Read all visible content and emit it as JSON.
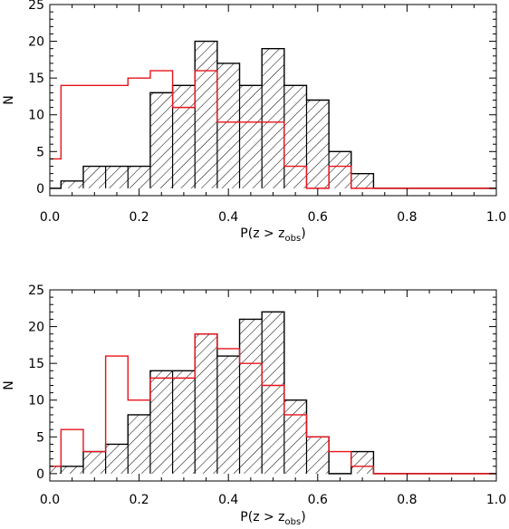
{
  "colors": {
    "black_series": "#000000",
    "red_series": "#e8131b",
    "hatch": "#000000"
  },
  "chart_data": [
    {
      "type": "bar",
      "title": "",
      "xlabel_main": "P(z > z",
      "xlabel_sub": "obs",
      "xlabel_close": ")",
      "ylabel": "N",
      "xlim": [
        0.0,
        1.0
      ],
      "ylim": [
        -1,
        25
      ],
      "xticks": [
        "0.0",
        "0.2",
        "0.4",
        "0.6",
        "0.8",
        "1.0"
      ],
      "yticks": [
        "0",
        "5",
        "10",
        "15",
        "20",
        "25"
      ],
      "bin_edges": [
        0.0,
        0.025,
        0.075,
        0.125,
        0.175,
        0.225,
        0.275,
        0.325,
        0.375,
        0.425,
        0.475,
        0.525,
        0.575,
        0.625,
        0.675,
        0.725,
        0.775,
        0.825,
        0.875,
        0.925,
        0.975,
        1.0
      ],
      "series": [
        {
          "values": [
            0,
            1,
            3,
            3,
            3,
            13,
            14,
            20,
            17,
            14,
            19,
            14,
            12,
            5,
            2,
            0,
            0,
            0,
            0,
            0,
            0
          ],
          "style": "black hatched"
        },
        {
          "values": [
            4,
            14,
            14,
            14,
            15,
            16,
            11,
            16,
            9,
            9,
            9,
            3,
            0,
            3,
            0,
            0,
            0,
            0,
            0,
            0,
            0
          ],
          "style": "red outline"
        }
      ]
    },
    {
      "type": "bar",
      "title": "",
      "xlabel_main": "P(z > z",
      "xlabel_sub": "obs",
      "xlabel_close": ")",
      "ylabel": "N",
      "xlim": [
        0.0,
        1.0
      ],
      "ylim": [
        -1,
        25
      ],
      "xticks": [
        "0.0",
        "0.2",
        "0.4",
        "0.6",
        "0.8",
        "1.0"
      ],
      "yticks": [
        "0",
        "5",
        "10",
        "15",
        "20",
        "25"
      ],
      "bin_edges": [
        0.0,
        0.025,
        0.075,
        0.125,
        0.175,
        0.225,
        0.275,
        0.325,
        0.375,
        0.425,
        0.475,
        0.525,
        0.575,
        0.625,
        0.675,
        0.725,
        0.775,
        0.825,
        0.875,
        0.925,
        0.975,
        1.0
      ],
      "series": [
        {
          "values": [
            1,
            1,
            3,
            4,
            8,
            14,
            14,
            19,
            16,
            21,
            22,
            10,
            5,
            0,
            3,
            0,
            0,
            0,
            0,
            0,
            0
          ],
          "style": "black hatched"
        },
        {
          "values": [
            1,
            6,
            3,
            16,
            10,
            13,
            13,
            19,
            17,
            15,
            12,
            8,
            5,
            3,
            1,
            0,
            0,
            0,
            0,
            0,
            0
          ],
          "style": "red outline"
        }
      ]
    }
  ]
}
